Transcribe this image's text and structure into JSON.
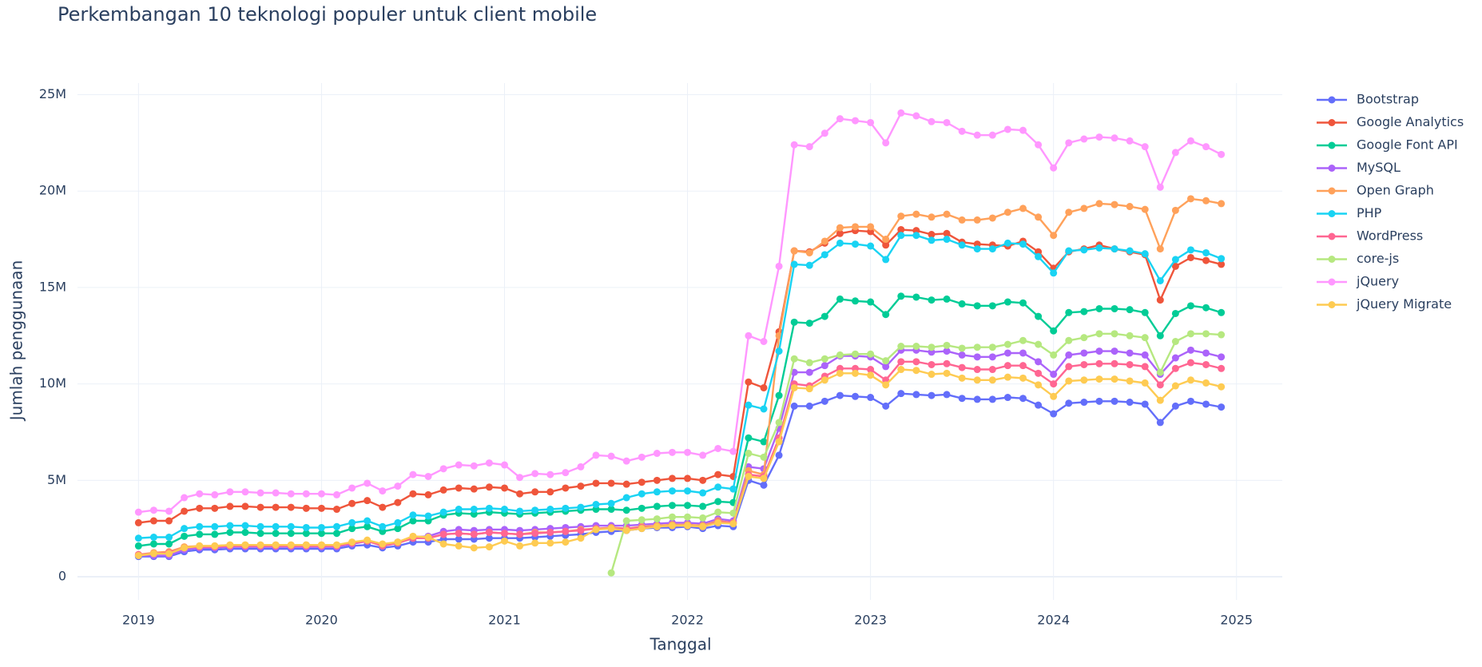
{
  "chart_data": {
    "type": "line",
    "title": "Perkembangan 10 teknologi populer untuk client mobile",
    "x_label": "Tanggal",
    "y_label": "Jumlah penggunaan",
    "x": [
      "2019-01",
      "2019-02",
      "2019-03",
      "2019-04",
      "2019-05",
      "2019-06",
      "2019-07",
      "2019-08",
      "2019-09",
      "2019-10",
      "2019-11",
      "2019-12",
      "2020-01",
      "2020-02",
      "2020-03",
      "2020-04",
      "2020-05",
      "2020-06",
      "2020-07",
      "2020-08",
      "2020-09",
      "2020-10",
      "2020-11",
      "2020-12",
      "2021-01",
      "2021-02",
      "2021-03",
      "2021-04",
      "2021-05",
      "2021-06",
      "2021-07",
      "2021-08",
      "2021-09",
      "2021-10",
      "2021-11",
      "2021-12",
      "2022-01",
      "2022-02",
      "2022-03",
      "2022-04",
      "2022-05",
      "2022-06",
      "2022-07",
      "2022-08",
      "2022-09",
      "2022-10",
      "2022-11",
      "2022-12",
      "2023-01",
      "2023-02",
      "2023-03",
      "2023-04",
      "2023-05",
      "2023-06",
      "2023-07",
      "2023-08",
      "2023-09",
      "2023-10",
      "2023-11",
      "2023-12",
      "2024-01",
      "2024-02",
      "2024-03",
      "2024-04",
      "2024-05",
      "2024-06",
      "2024-07",
      "2024-08",
      "2024-09",
      "2024-10",
      "2024-11",
      "2024-12"
    ],
    "xlim": [
      "2018-09",
      "2025-04"
    ],
    "xticks": [
      {
        "value": "2019-01",
        "label": "2019"
      },
      {
        "value": "2020-01",
        "label": "2020"
      },
      {
        "value": "2021-01",
        "label": "2021"
      },
      {
        "value": "2022-01",
        "label": "2022"
      },
      {
        "value": "2023-01",
        "label": "2023"
      },
      {
        "value": "2024-01",
        "label": "2024"
      },
      {
        "value": "2025-01",
        "label": "2025"
      }
    ],
    "ylim": [
      -1200000.0,
      25600000.0
    ],
    "yticks": [
      0,
      {
        "value": 5000000.0,
        "label": "5M"
      },
      {
        "value": 10000000.0,
        "label": "10M"
      },
      {
        "value": 15000000.0,
        "label": "15M"
      },
      {
        "value": 20000000.0,
        "label": "20M"
      },
      {
        "value": 25000000.0,
        "label": "25M"
      }
    ],
    "grid": true,
    "legend": "right",
    "series": [
      {
        "name": "Bootstrap",
        "color": "#636efa",
        "values": [
          1050000.0,
          1050000.0,
          1050000.0,
          1300000.0,
          1400000.0,
          1400000.0,
          1450000.0,
          1450000.0,
          1450000.0,
          1450000.0,
          1450000.0,
          1450000.0,
          1450000.0,
          1450000.0,
          1600000.0,
          1650000.0,
          1500000.0,
          1600000.0,
          1800000.0,
          1800000.0,
          1950000.0,
          1950000.0,
          1950000.0,
          2000000.0,
          2000000.0,
          2000000.0,
          2050000.0,
          2100000.0,
          2150000.0,
          2200000.0,
          2300000.0,
          2350000.0,
          2400000.0,
          2500000.0,
          2550000.0,
          2550000.0,
          2600000.0,
          2500000.0,
          2650000.0,
          2600000.0,
          5000000.0,
          4750000.0,
          6300000.0,
          8850000.0,
          8850000.0,
          9100000.0,
          9400000.0,
          9350000.0,
          9300000.0,
          8850000.0,
          9500000.0,
          9450000.0,
          9400000.0,
          9450000.0,
          9250000.0,
          9200000.0,
          9200000.0,
          9300000.0,
          9250000.0,
          8900000.0,
          8450000.0,
          9000000.0,
          9050000.0,
          9100000.0,
          9100000.0,
          9050000.0,
          8950000.0,
          8000000.0,
          8850000.0,
          9100000.0,
          8950000.0,
          8800000.0
        ]
      },
      {
        "name": "Google Analytics",
        "color": "#EF553B",
        "values": [
          2800000.0,
          2900000.0,
          2900000.0,
          3400000.0,
          3550000.0,
          3550000.0,
          3650000.0,
          3650000.0,
          3600000.0,
          3600000.0,
          3600000.0,
          3550000.0,
          3550000.0,
          3500000.0,
          3800000.0,
          3950000.0,
          3600000.0,
          3850000.0,
          4300000.0,
          4250000.0,
          4500000.0,
          4600000.0,
          4550000.0,
          4650000.0,
          4600000.0,
          4300000.0,
          4400000.0,
          4400000.0,
          4600000.0,
          4700000.0,
          4850000.0,
          4850000.0,
          4800000.0,
          4900000.0,
          5000000.0,
          5100000.0,
          5100000.0,
          5000000.0,
          5300000.0,
          5200000.0,
          10100000.0,
          9800000.0,
          12700000.0,
          16900000.0,
          16850000.0,
          17300000.0,
          17800000.0,
          17950000.0,
          17900000.0,
          17200000.0,
          18000000.0,
          17950000.0,
          17750000.0,
          17800000.0,
          17350000.0,
          17250000.0,
          17200000.0,
          17150000.0,
          17400000.0,
          16850000.0,
          16000000.0,
          16850000.0,
          17000000.0,
          17200000.0,
          17000000.0,
          16850000.0,
          16700000.0,
          14350000.0,
          16100000.0,
          16550000.0,
          16400000.0,
          16200000.0
        ]
      },
      {
        "name": "Google Font API",
        "color": "#00cc96",
        "values": [
          1600000.0,
          1700000.0,
          1700000.0,
          2100000.0,
          2200000.0,
          2200000.0,
          2300000.0,
          2300000.0,
          2250000.0,
          2250000.0,
          2250000.0,
          2250000.0,
          2250000.0,
          2250000.0,
          2500000.0,
          2600000.0,
          2350000.0,
          2500000.0,
          2900000.0,
          2900000.0,
          3200000.0,
          3300000.0,
          3250000.0,
          3350000.0,
          3300000.0,
          3250000.0,
          3300000.0,
          3350000.0,
          3400000.0,
          3450000.0,
          3500000.0,
          3500000.0,
          3450000.0,
          3550000.0,
          3650000.0,
          3700000.0,
          3700000.0,
          3650000.0,
          3900000.0,
          3850000.0,
          7200000.0,
          7000000.0,
          9400000.0,
          13200000.0,
          13150000.0,
          13500000.0,
          14400000.0,
          14300000.0,
          14250000.0,
          13600000.0,
          14550000.0,
          14500000.0,
          14350000.0,
          14400000.0,
          14150000.0,
          14050000.0,
          14050000.0,
          14250000.0,
          14200000.0,
          13500000.0,
          12750000.0,
          13700000.0,
          13750000.0,
          13900000.0,
          13900000.0,
          13850000.0,
          13700000.0,
          12500000.0,
          13650000.0,
          14050000.0,
          13950000.0,
          13700000.0
        ]
      },
      {
        "name": "MySQL",
        "color": "#ab63fa",
        "values": [
          1100000.0,
          1100000.0,
          1100000.0,
          1400000.0,
          1500000.0,
          1500000.0,
          1550000.0,
          1550000.0,
          1550000.0,
          1550000.0,
          1550000.0,
          1550000.0,
          1550000.0,
          1550000.0,
          1700000.0,
          1850000.0,
          1650000.0,
          1800000.0,
          2050000.0,
          2100000.0,
          2350000.0,
          2450000.0,
          2400000.0,
          2450000.0,
          2450000.0,
          2400000.0,
          2450000.0,
          2500000.0,
          2550000.0,
          2600000.0,
          2650000.0,
          2650000.0,
          2650000.0,
          2700000.0,
          2750000.0,
          2800000.0,
          2800000.0,
          2750000.0,
          3000000.0,
          2900000.0,
          5700000.0,
          5600000.0,
          7700000.0,
          10600000.0,
          10600000.0,
          10950000.0,
          11450000.0,
          11450000.0,
          11400000.0,
          10900000.0,
          11750000.0,
          11750000.0,
          11650000.0,
          11700000.0,
          11500000.0,
          11400000.0,
          11400000.0,
          11600000.0,
          11600000.0,
          11150000.0,
          10500000.0,
          11500000.0,
          11600000.0,
          11700000.0,
          11700000.0,
          11600000.0,
          11500000.0,
          10500000.0,
          11350000.0,
          11750000.0,
          11600000.0,
          11400000.0
        ]
      },
      {
        "name": "Open Graph",
        "color": "#FFA15A",
        "values": [
          1150000.0,
          1250000.0,
          1300000.0,
          1550000.0,
          1600000.0,
          1600000.0,
          1650000.0,
          1650000.0,
          1650000.0,
          1650000.0,
          1650000.0,
          1650000.0,
          1650000.0,
          1650000.0,
          1750000.0,
          1850000.0,
          1650000.0,
          1750000.0,
          2000000.0,
          2000000.0,
          2200000.0,
          2250000.0,
          2200000.0,
          2300000.0,
          2250000.0,
          2200000.0,
          2300000.0,
          2300000.0,
          2350000.0,
          2450000.0,
          2500000.0,
          2550000.0,
          2500000.0,
          2600000.0,
          2650000.0,
          2700000.0,
          2700000.0,
          2650000.0,
          2900000.0,
          2800000.0,
          5500000.0,
          5300000.0,
          12500000.0,
          16900000.0,
          16800000.0,
          17400000.0,
          18100000.0,
          18150000.0,
          18150000.0,
          17500000.0,
          18700000.0,
          18800000.0,
          18650000.0,
          18800000.0,
          18500000.0,
          18500000.0,
          18600000.0,
          18900000.0,
          19100000.0,
          18650000.0,
          17700000.0,
          18900000.0,
          19100000.0,
          19350000.0,
          19300000.0,
          19200000.0,
          19050000.0,
          17000000.0,
          19000000.0,
          19600000.0,
          19500000.0,
          19350000.0
        ]
      },
      {
        "name": "PHP",
        "color": "#19d3f3",
        "values": [
          2000000.0,
          2050000.0,
          2050000.0,
          2500000.0,
          2600000.0,
          2600000.0,
          2650000.0,
          2650000.0,
          2600000.0,
          2600000.0,
          2600000.0,
          2550000.0,
          2550000.0,
          2600000.0,
          2800000.0,
          2900000.0,
          2600000.0,
          2800000.0,
          3200000.0,
          3150000.0,
          3350000.0,
          3500000.0,
          3500000.0,
          3550000.0,
          3500000.0,
          3400000.0,
          3450000.0,
          3500000.0,
          3550000.0,
          3600000.0,
          3750000.0,
          3800000.0,
          4100000.0,
          4300000.0,
          4400000.0,
          4450000.0,
          4450000.0,
          4350000.0,
          4650000.0,
          4550000.0,
          8900000.0,
          8700000.0,
          11700000.0,
          16200000.0,
          16150000.0,
          16700000.0,
          17300000.0,
          17250000.0,
          17150000.0,
          16450000.0,
          17700000.0,
          17700000.0,
          17450000.0,
          17500000.0,
          17200000.0,
          17000000.0,
          17000000.0,
          17300000.0,
          17250000.0,
          16600000.0,
          15750000.0,
          16900000.0,
          16950000.0,
          17050000.0,
          17000000.0,
          16900000.0,
          16750000.0,
          15350000.0,
          16450000.0,
          16950000.0,
          16800000.0,
          16500000.0
        ]
      },
      {
        "name": "WordPress",
        "color": "#FF6692",
        "values": [
          1150000.0,
          1200000.0,
          1250000.0,
          1500000.0,
          1550000.0,
          1550000.0,
          1600000.0,
          1600000.0,
          1600000.0,
          1600000.0,
          1600000.0,
          1600000.0,
          1600000.0,
          1600000.0,
          1750000.0,
          1850000.0,
          1600000.0,
          1750000.0,
          2000000.0,
          2000000.0,
          2200000.0,
          2250000.0,
          2200000.0,
          2300000.0,
          2250000.0,
          2200000.0,
          2250000.0,
          2300000.0,
          2350000.0,
          2400000.0,
          2500000.0,
          2500000.0,
          2500000.0,
          2550000.0,
          2600000.0,
          2650000.0,
          2650000.0,
          2600000.0,
          2850000.0,
          2800000.0,
          5300000.0,
          5200000.0,
          7200000.0,
          10000000.0,
          9900000.0,
          10400000.0,
          10800000.0,
          10800000.0,
          10750000.0,
          10200000.0,
          11150000.0,
          11150000.0,
          11000000.0,
          11050000.0,
          10850000.0,
          10750000.0,
          10750000.0,
          10950000.0,
          10950000.0,
          10550000.0,
          10000000.0,
          10900000.0,
          11000000.0,
          11050000.0,
          11050000.0,
          11000000.0,
          10900000.0,
          9950000.0,
          10800000.0,
          11100000.0,
          11000000.0,
          10800000.0
        ]
      },
      {
        "name": "core-js",
        "color": "#B6E880",
        "values": [
          null,
          null,
          null,
          null,
          null,
          null,
          null,
          null,
          null,
          null,
          null,
          null,
          null,
          null,
          null,
          null,
          null,
          null,
          null,
          null,
          null,
          null,
          null,
          null,
          null,
          null,
          null,
          null,
          null,
          null,
          null,
          200000.0,
          2900000.0,
          2950000.0,
          3000000.0,
          3100000.0,
          3100000.0,
          3050000.0,
          3350000.0,
          3300000.0,
          6400000.0,
          6200000.0,
          8000000.0,
          11300000.0,
          11100000.0,
          11300000.0,
          11500000.0,
          11550000.0,
          11550000.0,
          11200000.0,
          11950000.0,
          11950000.0,
          11900000.0,
          12000000.0,
          11850000.0,
          11900000.0,
          11900000.0,
          12050000.0,
          12250000.0,
          12050000.0,
          11500000.0,
          12250000.0,
          12400000.0,
          12600000.0,
          12600000.0,
          12500000.0,
          12400000.0,
          10600000.0,
          12200000.0,
          12600000.0,
          12600000.0,
          12550000.0
        ]
      },
      {
        "name": "jQuery",
        "color": "#FF97FF",
        "values": [
          3350000.0,
          3450000.0,
          3400000.0,
          4100000.0,
          4300000.0,
          4250000.0,
          4400000.0,
          4400000.0,
          4350000.0,
          4350000.0,
          4300000.0,
          4300000.0,
          4300000.0,
          4250000.0,
          4600000.0,
          4850000.0,
          4450000.0,
          4700000.0,
          5300000.0,
          5200000.0,
          5600000.0,
          5800000.0,
          5750000.0,
          5900000.0,
          5800000.0,
          5150000.0,
          5350000.0,
          5300000.0,
          5400000.0,
          5700000.0,
          6300000.0,
          6250000.0,
          6000000.0,
          6200000.0,
          6400000.0,
          6450000.0,
          6450000.0,
          6300000.0,
          6650000.0,
          6500000.0,
          12500000.0,
          12200000.0,
          16100000.0,
          22400000.0,
          22300000.0,
          23000000.0,
          23750000.0,
          23650000.0,
          23550000.0,
          22500000.0,
          24050000.0,
          23900000.0,
          23600000.0,
          23550000.0,
          23100000.0,
          22900000.0,
          22900000.0,
          23200000.0,
          23150000.0,
          22400000.0,
          21200000.0,
          22500000.0,
          22700000.0,
          22800000.0,
          22750000.0,
          22600000.0,
          22300000.0,
          20200000.0,
          22000000.0,
          22600000.0,
          22300000.0,
          21900000.0
        ]
      },
      {
        "name": "jQuery Migrate",
        "color": "#FECB52",
        "values": [
          1100000.0,
          1200000.0,
          1200000.0,
          1500000.0,
          1600000.0,
          1600000.0,
          1650000.0,
          1650000.0,
          1650000.0,
          1650000.0,
          1650000.0,
          1650000.0,
          1650000.0,
          1650000.0,
          1800000.0,
          1900000.0,
          1700000.0,
          1800000.0,
          2100000.0,
          2050000.0,
          1700000.0,
          1600000.0,
          1500000.0,
          1550000.0,
          1850000.0,
          1600000.0,
          1750000.0,
          1750000.0,
          1800000.0,
          2000000.0,
          2450000.0,
          2500000.0,
          2400000.0,
          2500000.0,
          2600000.0,
          2650000.0,
          2650000.0,
          2600000.0,
          2800000.0,
          2750000.0,
          5200000.0,
          5100000.0,
          7000000.0,
          9800000.0,
          9750000.0,
          10200000.0,
          10550000.0,
          10550000.0,
          10450000.0,
          9950000.0,
          10750000.0,
          10700000.0,
          10500000.0,
          10550000.0,
          10300000.0,
          10200000.0,
          10200000.0,
          10350000.0,
          10300000.0,
          9950000.0,
          9350000.0,
          10150000.0,
          10200000.0,
          10250000.0,
          10250000.0,
          10150000.0,
          10050000.0,
          9150000.0,
          9900000.0,
          10200000.0,
          10050000.0,
          9850000.0
        ]
      }
    ]
  }
}
